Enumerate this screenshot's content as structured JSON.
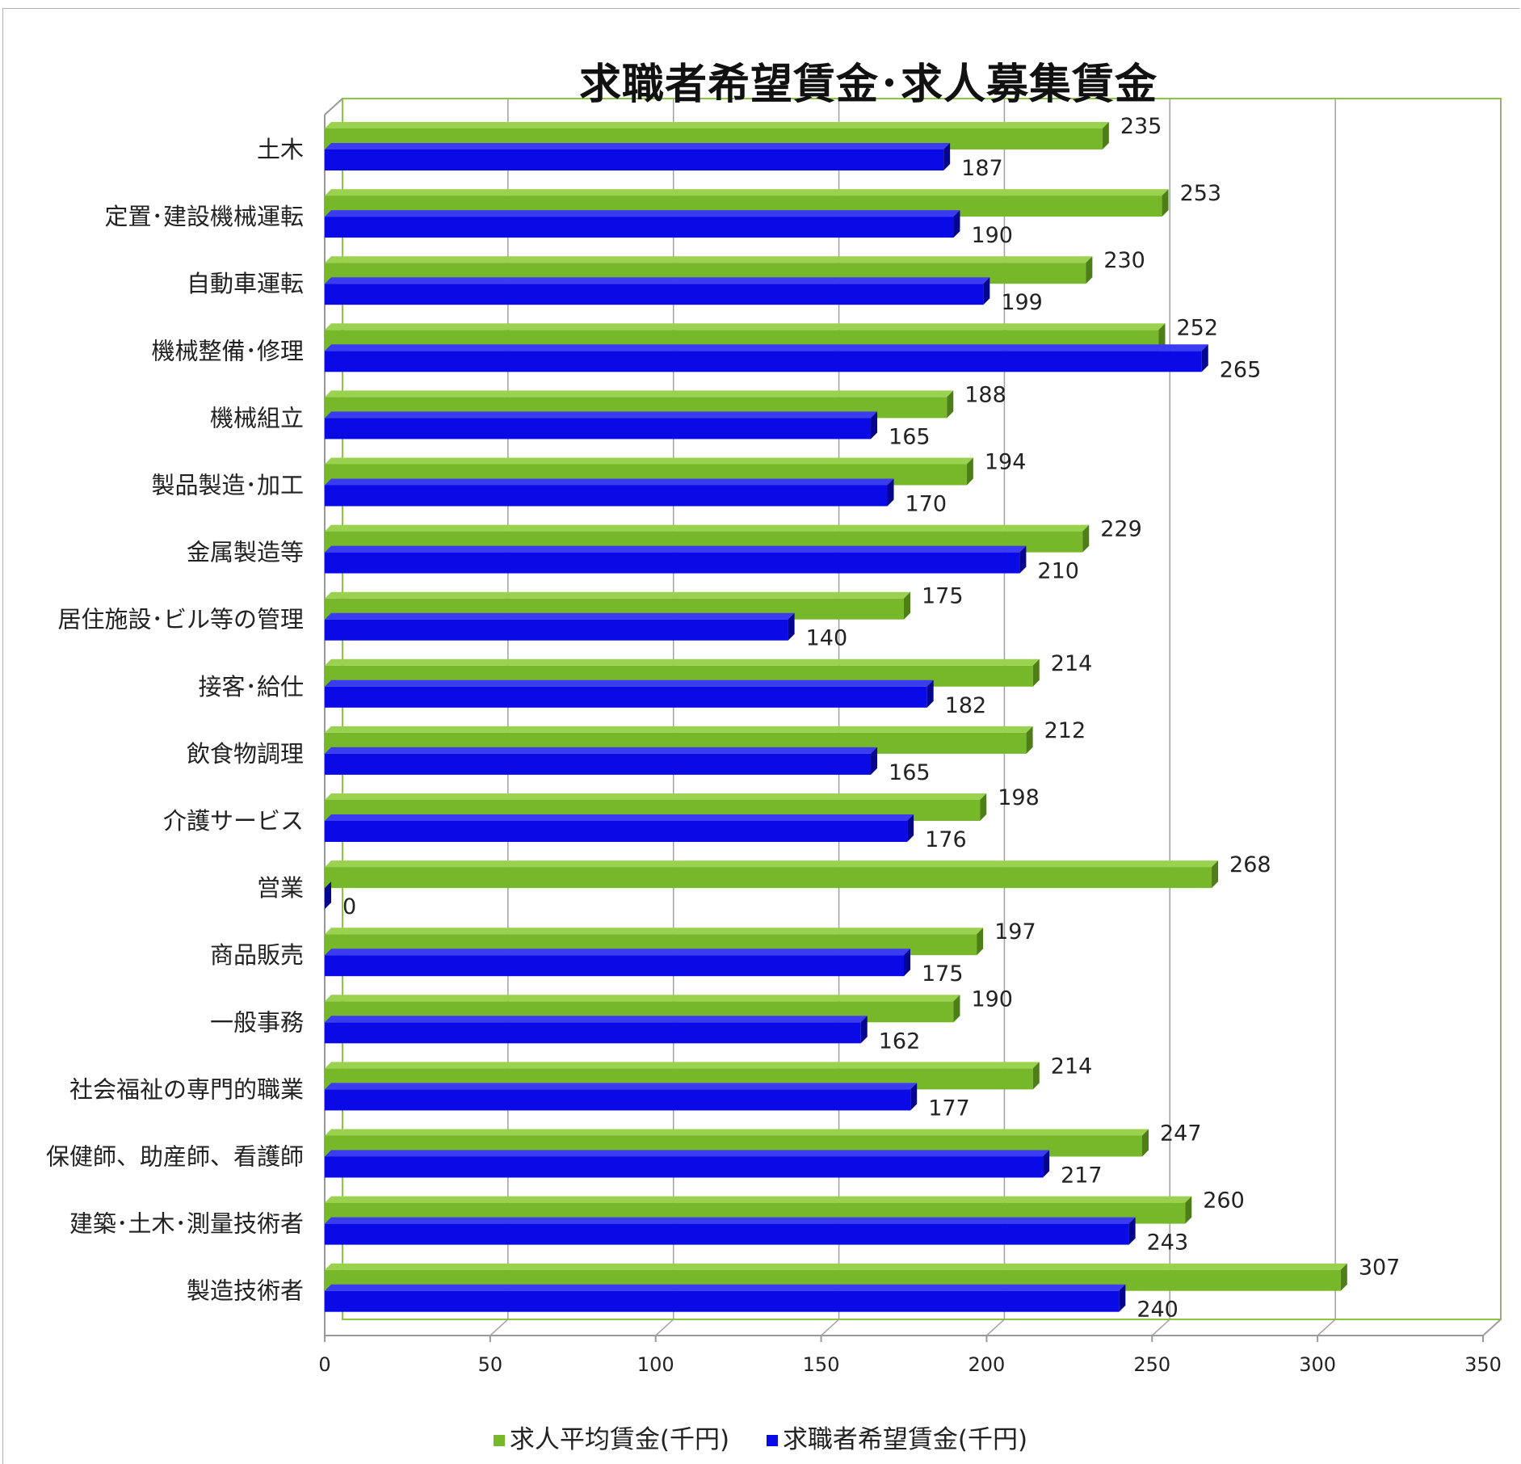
{
  "chart_data": {
    "type": "bar",
    "orientation": "horizontal",
    "title": "求職者希望賃金･求人募集賃金",
    "categories": [
      "土木",
      "定置･建設機械運転",
      "自動車運転",
      "機械整備･修理",
      "機械組立",
      "製品製造･加工",
      "金属製造等",
      "居住施設･ビル等の管理",
      "接客･給仕",
      "飲食物調理",
      "介護サービス",
      "営業",
      "商品販売",
      "一般事務",
      "社会福祉の専門的職業",
      "保健師、助産師、看護師",
      "建築･土木･測量技術者",
      "製造技術者"
    ],
    "series": [
      {
        "name": "求人平均賃金(千円)",
        "color": "#76b82a",
        "values": [
          235,
          253,
          230,
          252,
          188,
          194,
          229,
          175,
          214,
          212,
          198,
          268,
          197,
          190,
          214,
          247,
          260,
          307
        ]
      },
      {
        "name": "求職者希望賃金(千円)",
        "color": "#0a0ae6",
        "values": [
          187,
          190,
          199,
          265,
          165,
          170,
          210,
          140,
          182,
          165,
          176,
          0,
          175,
          162,
          177,
          217,
          243,
          240
        ]
      }
    ],
    "xlim": [
      0,
      350
    ],
    "x_ticks": [
      0,
      50,
      100,
      150,
      200,
      250,
      300,
      350
    ],
    "grid": true,
    "legend_position": "bottom"
  }
}
